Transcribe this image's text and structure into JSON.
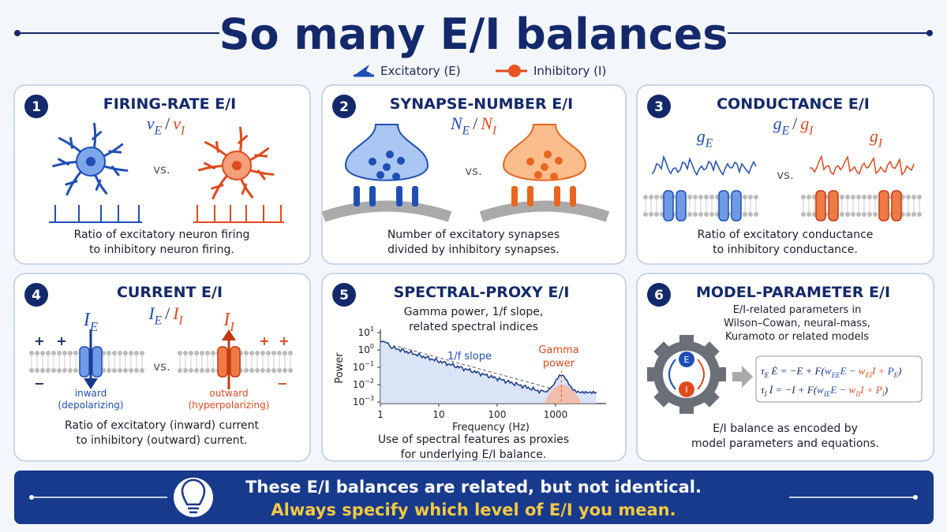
{
  "title": "So many E/I balances",
  "legend": {
    "excitatory": "Excitatory (E)",
    "inhibitory": "Inhibitory (I)"
  },
  "panels": [
    {
      "number": "1",
      "title": "FIRING-RATE E/I",
      "ratio": [
        "ν",
        "E",
        "/",
        "ν",
        "I"
      ],
      "comparison": "vs.",
      "description": [
        "Ratio of excitatory neuron firing",
        "to inhibitory neuron firing."
      ]
    },
    {
      "number": "2",
      "title": "SYNAPSE-NUMBER E/I",
      "ratio": [
        "N",
        "E",
        "/",
        "N",
        "I"
      ],
      "comparison": "vs.",
      "description": [
        "Number of excitatory synapses",
        "divided by inhibitory synapses."
      ]
    },
    {
      "number": "3",
      "title": "CONDUCTANCE E/I",
      "ratio": [
        "g",
        "E",
        "/",
        "g",
        "I"
      ],
      "labels": [
        [
          "g",
          "E"
        ],
        [
          "g",
          "I"
        ]
      ],
      "comparison": "vs.",
      "description": [
        "Ratio of excitatory conductance",
        "to inhibitory conductance."
      ]
    },
    {
      "number": "4",
      "title": "CURRENT E/I",
      "ratio": [
        "I",
        "E",
        "/",
        "I",
        "I"
      ],
      "labels": [
        [
          "I",
          "E"
        ],
        [
          "I",
          "I"
        ]
      ],
      "signs": [
        [
          "+",
          "+",
          "−"
        ],
        [
          "+",
          "+",
          "−"
        ]
      ],
      "comparison": "vs.",
      "currents": [
        [
          "inward",
          "(depolarizing)"
        ],
        [
          "outward",
          "(hyperpolarizing)"
        ]
      ],
      "description": [
        "Ratio of excitatory (inward) current",
        "to inhibitory (outward) current."
      ]
    },
    {
      "number": "5",
      "title": "SPECTRAL-PROXY E/I",
      "subtitle": [
        "Gamma power, 1/f slope,",
        "related spectral indices"
      ],
      "plot": {
        "ylabel": "Power",
        "xlabel": "Frequency (Hz)",
        "yticks": [
          [
            "10",
            "1"
          ],
          [
            "10",
            "0"
          ],
          [
            "10",
            "−1"
          ],
          [
            "10",
            "−2"
          ],
          [
            "10",
            "−3"
          ]
        ],
        "xticks": [
          "1",
          "10",
          "100",
          "1000"
        ],
        "annotations": [
          "1/f slope",
          "Gamma",
          "power"
        ]
      },
      "description": [
        "Use of spectral features as proxies",
        "for underlying E/I balance."
      ]
    },
    {
      "number": "6",
      "title": "MODEL-PARAMETER E/I",
      "subtitle": [
        "E/I-related parameters in",
        "Wilson–Cowan, neural-mass,",
        "Kuramoto or related models"
      ],
      "nodes": [
        "E",
        "I"
      ],
      "equations": [
        [
          "τ",
          "E",
          " Ė = −E + F(",
          "w",
          "EE",
          "E − ",
          "w",
          "EI",
          "I + ",
          "P",
          "E",
          ")"
        ],
        [
          "τ",
          "I",
          " İ = −I + F(",
          "w",
          "IE",
          "E − ",
          "w",
          "II",
          "I + ",
          "P",
          "I",
          ")"
        ]
      ],
      "description": [
        "E/I balance as encoded by",
        "model parameters and equations."
      ]
    }
  ],
  "banner": [
    "These E/I balances are related, but not identical.",
    "Always specify which level of E/I you mean."
  ]
}
